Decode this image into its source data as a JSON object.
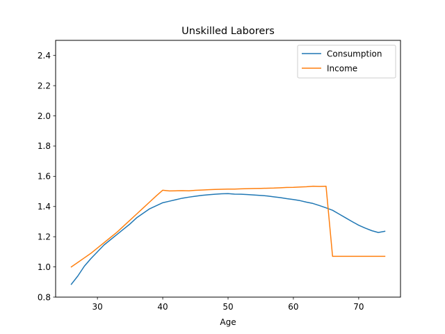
{
  "chart_data": {
    "type": "line",
    "title": "Unskilled Laborers",
    "xlabel": "Age",
    "ylabel": "",
    "xlim": [
      23.6,
      76.4
    ],
    "ylim": [
      0.8,
      2.5
    ],
    "xticks": [
      30,
      40,
      50,
      60,
      70
    ],
    "yticks": [
      0.8,
      1.0,
      1.2,
      1.4,
      1.6,
      1.8,
      2.0,
      2.2,
      2.4
    ],
    "grid": false,
    "legend_position": "top-right",
    "series": [
      {
        "name": "Consumption",
        "color": "#1f77b4",
        "x": [
          26,
          27,
          28,
          29,
          30,
          31,
          32,
          33,
          34,
          35,
          36,
          37,
          38,
          39,
          40,
          41,
          42,
          43,
          44,
          45,
          46,
          47,
          48,
          49,
          50,
          51,
          52,
          53,
          54,
          55,
          56,
          57,
          58,
          59,
          60,
          61,
          62,
          63,
          64,
          65,
          66,
          67,
          68,
          69,
          70,
          71,
          72,
          73,
          74
        ],
        "y": [
          0.885,
          0.94,
          1.005,
          1.055,
          1.1,
          1.145,
          1.18,
          1.215,
          1.25,
          1.285,
          1.325,
          1.355,
          1.385,
          1.405,
          1.425,
          1.435,
          1.445,
          1.455,
          1.462,
          1.468,
          1.474,
          1.478,
          1.481,
          1.484,
          1.485,
          1.482,
          1.481,
          1.479,
          1.476,
          1.473,
          1.47,
          1.464,
          1.459,
          1.452,
          1.446,
          1.439,
          1.429,
          1.42,
          1.406,
          1.391,
          1.375,
          1.35,
          1.325,
          1.3,
          1.276,
          1.257,
          1.24,
          1.228,
          1.236
        ]
      },
      {
        "name": "Income",
        "color": "#ff7f0e",
        "x": [
          26,
          27,
          28,
          29,
          30,
          31,
          32,
          33,
          34,
          35,
          36,
          37,
          38,
          39,
          40,
          41,
          42,
          43,
          44,
          45,
          46,
          47,
          48,
          49,
          50,
          51,
          52,
          53,
          54,
          55,
          56,
          57,
          58,
          59,
          60,
          61,
          62,
          63,
          64,
          65,
          66,
          67,
          68,
          69,
          70,
          71,
          72,
          73,
          74
        ],
        "y": [
          1.0,
          1.03,
          1.06,
          1.09,
          1.125,
          1.16,
          1.195,
          1.23,
          1.27,
          1.31,
          1.35,
          1.39,
          1.43,
          1.47,
          1.508,
          1.503,
          1.504,
          1.505,
          1.504,
          1.507,
          1.509,
          1.511,
          1.513,
          1.514,
          1.515,
          1.515,
          1.517,
          1.518,
          1.519,
          1.52,
          1.521,
          1.522,
          1.524,
          1.526,
          1.527,
          1.529,
          1.531,
          1.534,
          1.533,
          1.534,
          1.07,
          1.07,
          1.07,
          1.07,
          1.07,
          1.07,
          1.07,
          1.07,
          1.07
        ]
      }
    ]
  }
}
